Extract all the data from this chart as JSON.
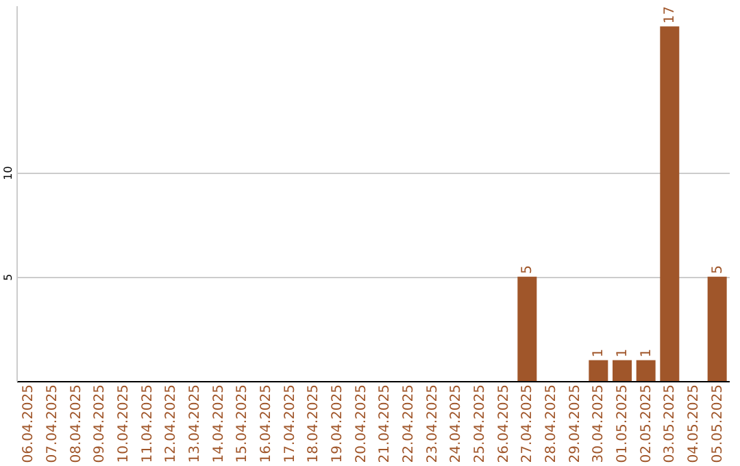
{
  "chart_data": {
    "type": "bar",
    "categories": [
      "06.04.2025",
      "07.04.2025",
      "08.04.2025",
      "09.04.2025",
      "10.04.2025",
      "11.04.2025",
      "12.04.2025",
      "13.04.2025",
      "14.04.2025",
      "15.04.2025",
      "16.04.2025",
      "17.04.2025",
      "18.04.2025",
      "19.04.2025",
      "20.04.2025",
      "21.04.2025",
      "22.04.2025",
      "23.04.2025",
      "24.04.2025",
      "25.04.2025",
      "26.04.2025",
      "27.04.2025",
      "28.04.2025",
      "29.04.2025",
      "30.04.2025",
      "01.05.2025",
      "02.05.2025",
      "03.05.2025",
      "04.05.2025",
      "05.05.2025"
    ],
    "values": [
      0,
      0,
      0,
      0,
      0,
      0,
      0,
      0,
      0,
      0,
      0,
      0,
      0,
      0,
      0,
      0,
      0,
      0,
      0,
      0,
      0,
      5,
      0,
      0,
      1,
      1,
      1,
      17,
      0,
      5
    ],
    "value_labels": [
      null,
      null,
      null,
      null,
      null,
      null,
      null,
      null,
      null,
      null,
      null,
      null,
      null,
      null,
      null,
      null,
      null,
      null,
      null,
      null,
      null,
      "5",
      null,
      null,
      "1",
      "1",
      "1",
      "17",
      null,
      "5"
    ],
    "color": "#a0562a",
    "ylim": [
      0,
      18
    ],
    "yticks": [
      5,
      10
    ],
    "grid": "y"
  }
}
